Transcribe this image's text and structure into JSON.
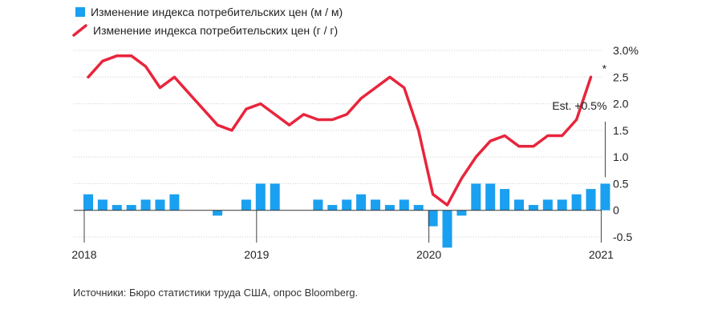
{
  "legend": [
    {
      "label": "Изменение индекса потребительских цен (м / м)",
      "shape": "square",
      "color": "#1aa0f0"
    },
    {
      "label": "Изменение индекса потребительских цен (г / г)",
      "shape": "line",
      "color": "#e8253c"
    }
  ],
  "source": "Источники: Бюро статистики труда США, опрос Bloomberg.",
  "annotation": {
    "label": "Est. +0.5%",
    "marker": "*"
  },
  "colors": {
    "bar": "#1aa0f0",
    "line": "#e8253c",
    "grid": "#cccccc",
    "zero": "#333333"
  },
  "chart_data": {
    "type": "bar+line",
    "x_start": "2018-01",
    "x_end": "2021-03",
    "ylim": [
      -0.5,
      3.0
    ],
    "y_ticks": [
      {
        "value": 3.0,
        "label": "3.0%"
      },
      {
        "value": 2.5,
        "label": "2.5"
      },
      {
        "value": 2.0,
        "label": "2.0"
      },
      {
        "value": 1.5,
        "label": "1.5"
      },
      {
        "value": 1.0,
        "label": "1.0"
      },
      {
        "value": 0.5,
        "label": "0.5"
      },
      {
        "value": 0,
        "label": "0"
      },
      {
        "value": -0.5,
        "label": "-0.5"
      }
    ],
    "x_ticks": [
      {
        "value": "2018-01",
        "label": "2018"
      },
      {
        "value": "2019-01",
        "label": "2019"
      },
      {
        "value": "2020-01",
        "label": "2020"
      },
      {
        "value": "2021-01",
        "label": "2021"
      }
    ],
    "grid": true,
    "legend_position": "top-left",
    "series": [
      {
        "name": "Изменение индекса потребительских цен (м / м)",
        "type": "bar",
        "values": [
          0.3,
          0.2,
          0.1,
          0.1,
          0.2,
          0.2,
          0.3,
          0.0,
          0.0,
          -0.1,
          0.0,
          0.2,
          0.5,
          0.5,
          0.0,
          0.0,
          0.2,
          0.1,
          0.2,
          0.3,
          0.2,
          0.1,
          0.2,
          0.1,
          -0.3,
          -0.7,
          -0.1,
          0.5,
          0.5,
          0.4,
          0.2,
          0.1,
          0.2,
          0.2,
          0.3,
          0.4,
          0.5
        ]
      },
      {
        "name": "Изменение индекса потребительских цен (г / г)",
        "type": "line",
        "values": [
          2.5,
          2.8,
          2.9,
          2.9,
          2.7,
          2.3,
          2.5,
          2.2,
          1.9,
          1.6,
          1.5,
          1.9,
          2.0,
          1.8,
          1.6,
          1.8,
          1.7,
          1.7,
          1.8,
          2.1,
          2.3,
          2.5,
          2.3,
          1.5,
          0.3,
          0.1,
          0.6,
          1.0,
          1.3,
          1.4,
          1.2,
          1.2,
          1.4,
          1.4,
          1.7,
          2.5
        ]
      }
    ]
  }
}
